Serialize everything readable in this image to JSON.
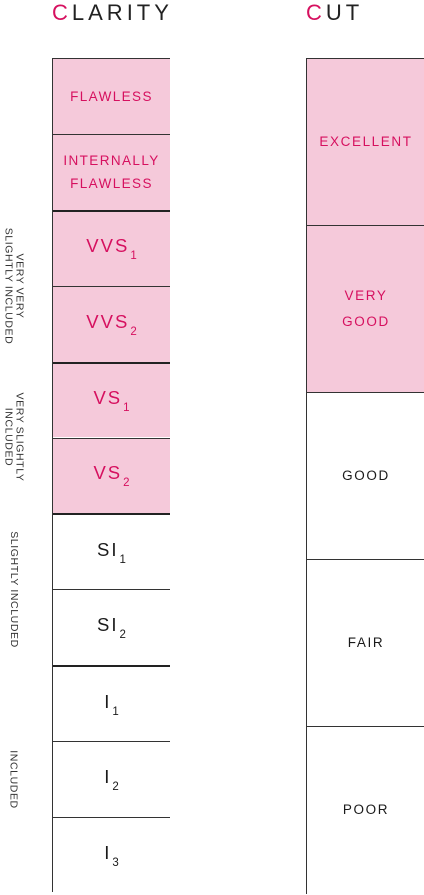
{
  "clarity": {
    "heading_first": "C",
    "heading_rest": "LARITY",
    "grades": [
      {
        "label": "FLAWLESS",
        "sub": "",
        "highlight": true
      },
      {
        "label": "INTERNALLY FLAWLESS",
        "sub": "",
        "highlight": true
      },
      {
        "label": "VVS",
        "sub": "1",
        "highlight": true
      },
      {
        "label": "VVS",
        "sub": "2",
        "highlight": true
      },
      {
        "label": "VS",
        "sub": "1",
        "highlight": true
      },
      {
        "label": "VS",
        "sub": "2",
        "highlight": true
      },
      {
        "label": "SI",
        "sub": "1",
        "highlight": false
      },
      {
        "label": "SI",
        "sub": "2",
        "highlight": false
      },
      {
        "label": "I",
        "sub": "1",
        "highlight": false
      },
      {
        "label": "I",
        "sub": "2",
        "highlight": false
      },
      {
        "label": "I",
        "sub": "3",
        "highlight": false
      }
    ],
    "groups": [
      {
        "label": "VERY VERY SLIGHTLY INCLUDED",
        "grades": [
          "VVS1",
          "VVS2"
        ]
      },
      {
        "label": "VERY SLIGHTLY INCLUDED",
        "grades": [
          "VS1",
          "VS2"
        ]
      },
      {
        "label": "SLIGHTLY INCLUDED",
        "grades": [
          "SI1",
          "SI2"
        ]
      },
      {
        "label": "INCLUDED",
        "grades": [
          "I1",
          "I2",
          "I3"
        ]
      }
    ]
  },
  "cut": {
    "heading_first": "C",
    "heading_rest": "UT",
    "grades": [
      {
        "label": "EXCELLENT",
        "highlight": true
      },
      {
        "label": "VERY GOOD",
        "highlight": true
      },
      {
        "label": "GOOD",
        "highlight": false
      },
      {
        "label": "FAIR",
        "highlight": false
      },
      {
        "label": "POOR",
        "highlight": false
      }
    ]
  },
  "colors": {
    "accent": "#d6105f",
    "highlight_fill": "#f5c9da",
    "line": "#333333"
  }
}
